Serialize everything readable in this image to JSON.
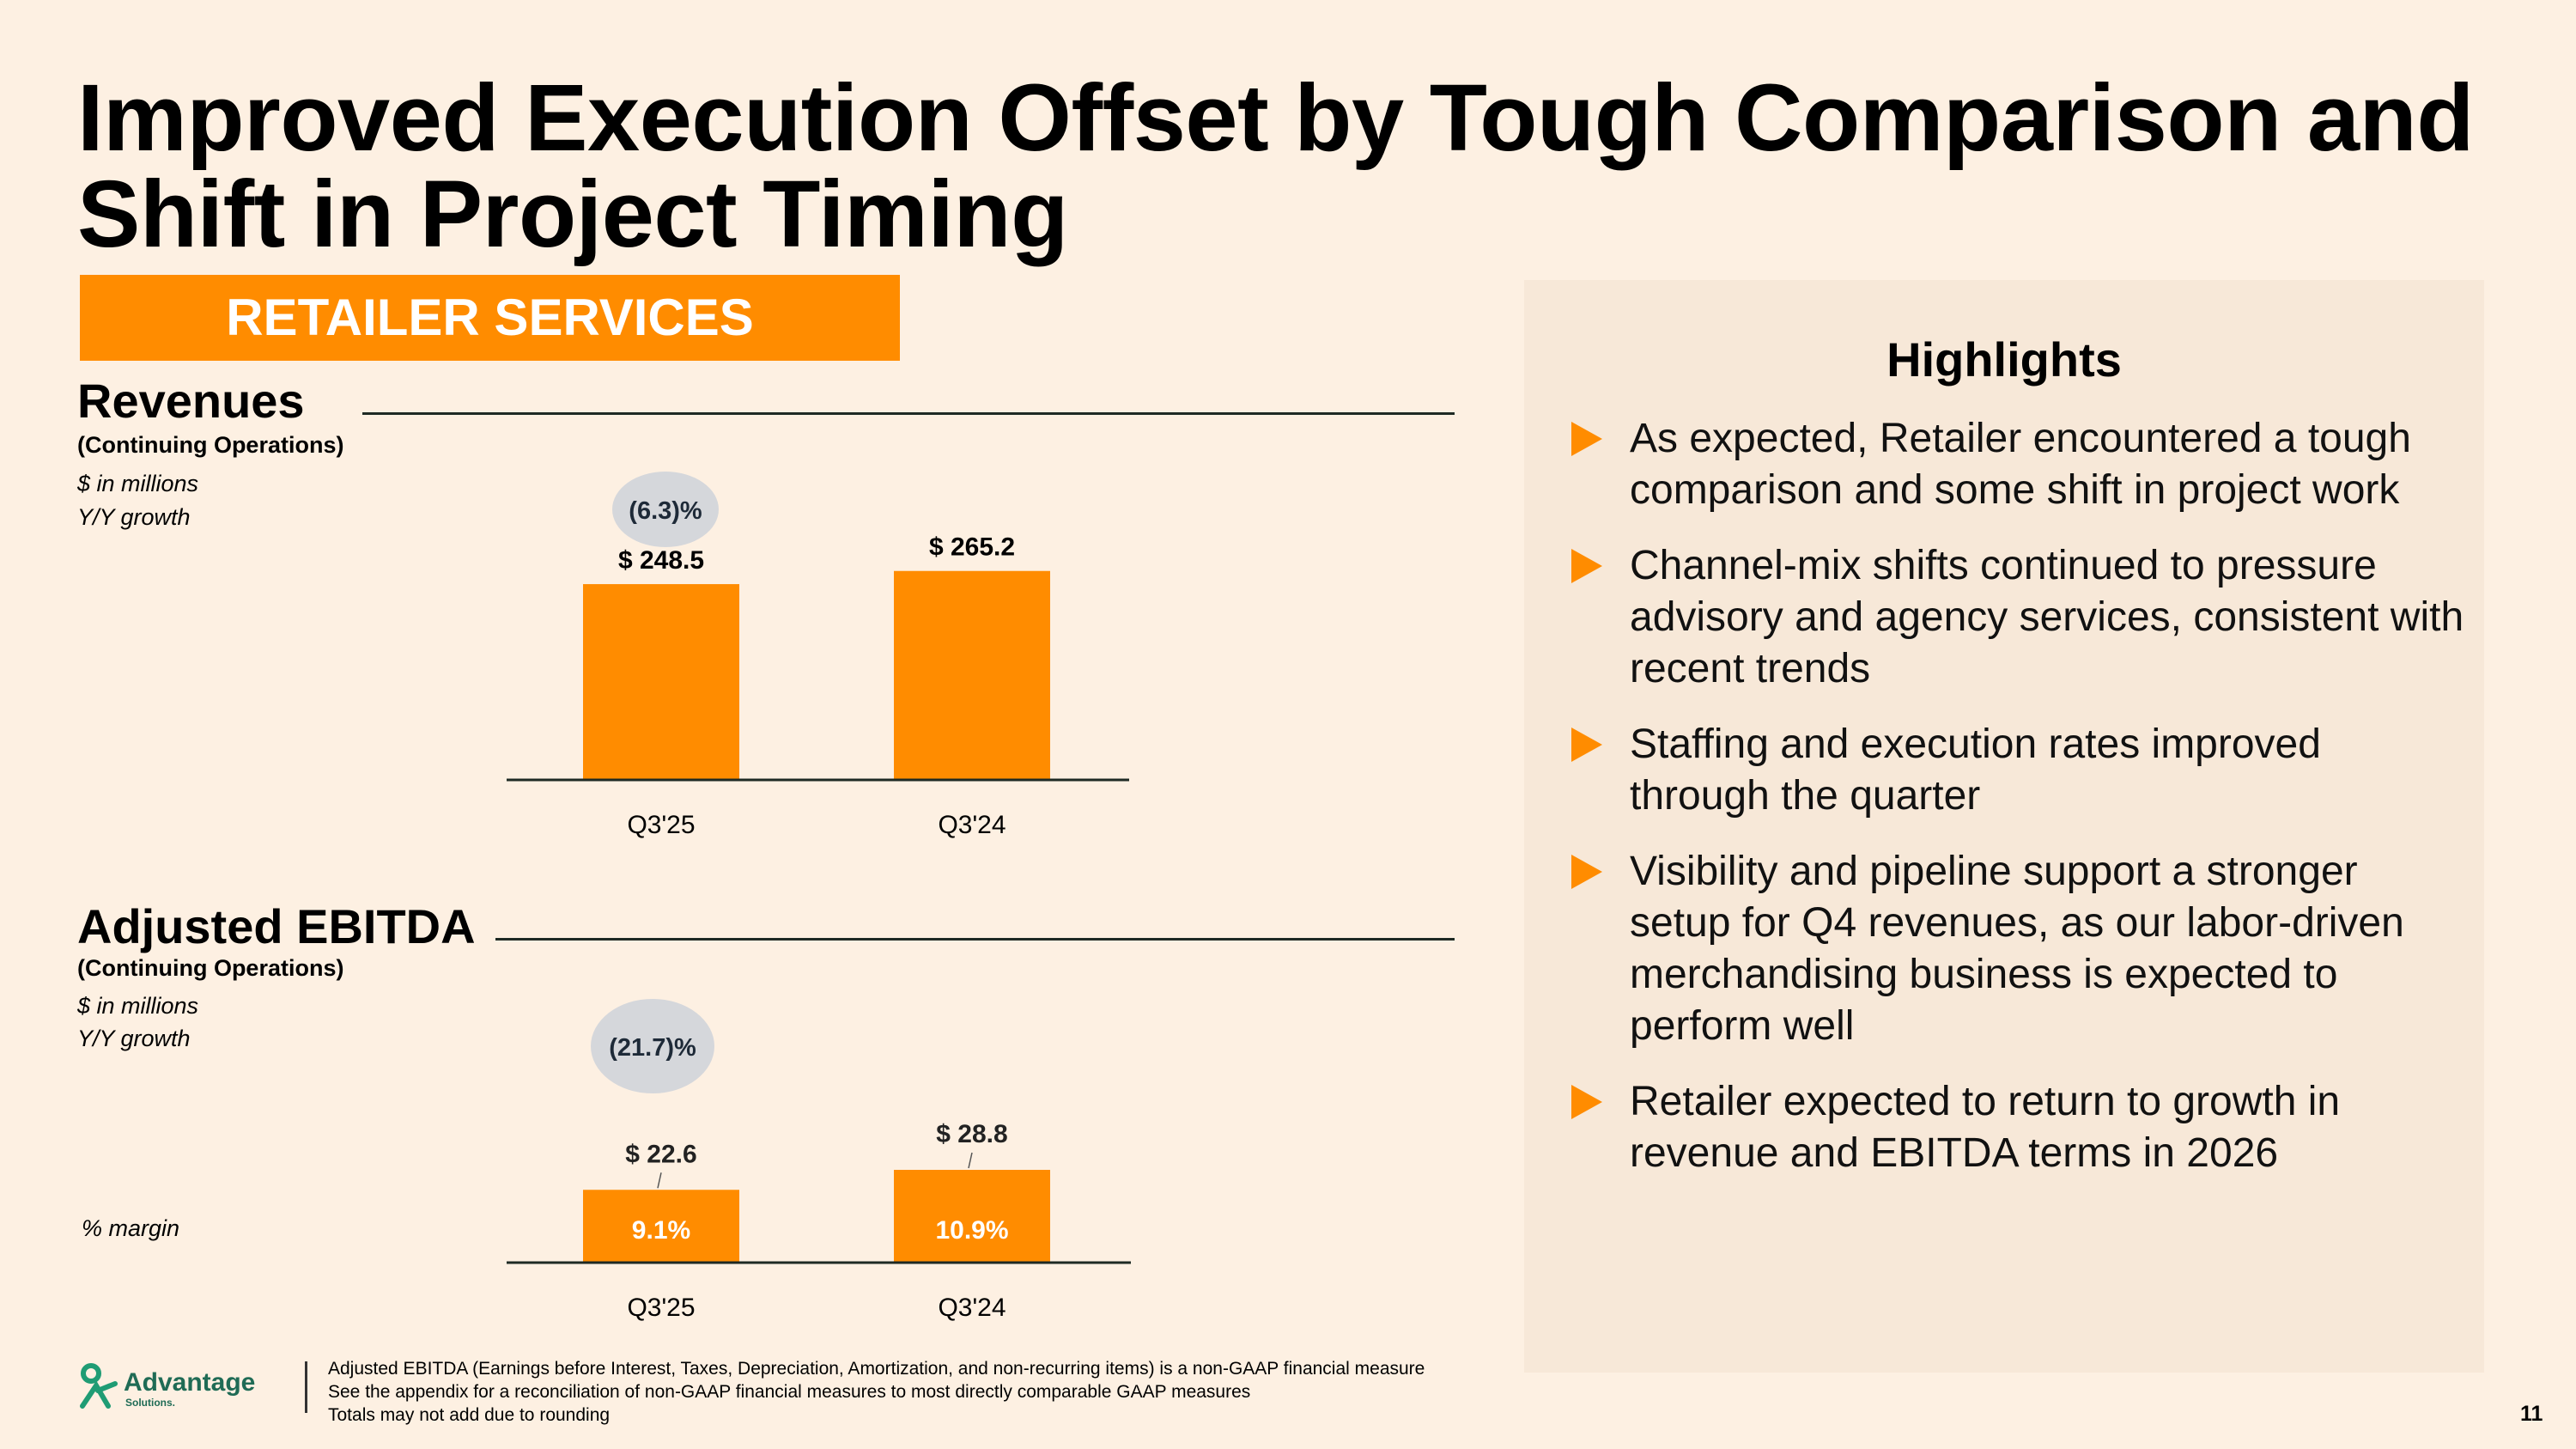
{
  "slide": {
    "title": "Improved Execution Offset by Tough Comparison and Shift in Project Timing",
    "banner": "RETAILER SERVICES",
    "page_number": "11"
  },
  "revenues": {
    "title": "Revenues",
    "subtitle": "(Continuing Operations)",
    "units": "$ in millions",
    "growth_label": "Y/Y growth",
    "growth_value": "(6.3)%"
  },
  "ebitda": {
    "title": "Adjusted EBITDA",
    "subtitle": "(Continuing Operations)",
    "units": "$ in millions",
    "growth_label": "Y/Y growth",
    "growth_value": "(21.7)%",
    "margin_label": "% margin"
  },
  "highlights": {
    "title": "Highlights",
    "items": [
      "As expected, Retailer encountered a tough comparison and some shift in project work",
      "Channel-mix shifts continued to pressure advisory and agency services, consistent with recent trends",
      "Staffing and execution rates improved through the quarter",
      "Visibility and pipeline support a stronger setup for Q4 revenues, as our labor-driven merchandising business is expected to perform well",
      "Retailer expected to return to growth in revenue and EBITDA terms in 2026"
    ]
  },
  "footer": {
    "logo_name": "Advantage",
    "logo_sub": "Solutions.",
    "notes": [
      "Adjusted EBITDA (Earnings before Interest, Taxes, Depreciation, Amortization, and non-recurring items) is a non-GAAP financial measure",
      "See the appendix for a reconciliation of non-GAAP financial measures to most directly comparable GAAP measures",
      "Totals may not add due to rounding"
    ]
  },
  "colors": {
    "bar": "#ff8c00",
    "background": "#fdf0e2",
    "panel": "#f7e8d8",
    "bubble": "#d5d7db",
    "logo": "#1f9c74"
  },
  "chart_data": [
    {
      "type": "bar",
      "title": "Revenues",
      "categories": [
        "Q3'25",
        "Q3'24"
      ],
      "values": [
        248.5,
        265.2
      ],
      "value_labels": [
        "$ 248.5",
        "$ 265.2"
      ],
      "ylim": [
        0,
        290
      ]
    },
    {
      "type": "bar",
      "title": "Adjusted EBITDA",
      "categories": [
        "Q3'25",
        "Q3'24"
      ],
      "values": [
        22.6,
        28.8
      ],
      "value_labels": [
        "$ 22.6",
        "$ 28.8"
      ],
      "margins": [
        "9.1%",
        "10.9%"
      ],
      "ylim": [
        0,
        60
      ]
    }
  ]
}
